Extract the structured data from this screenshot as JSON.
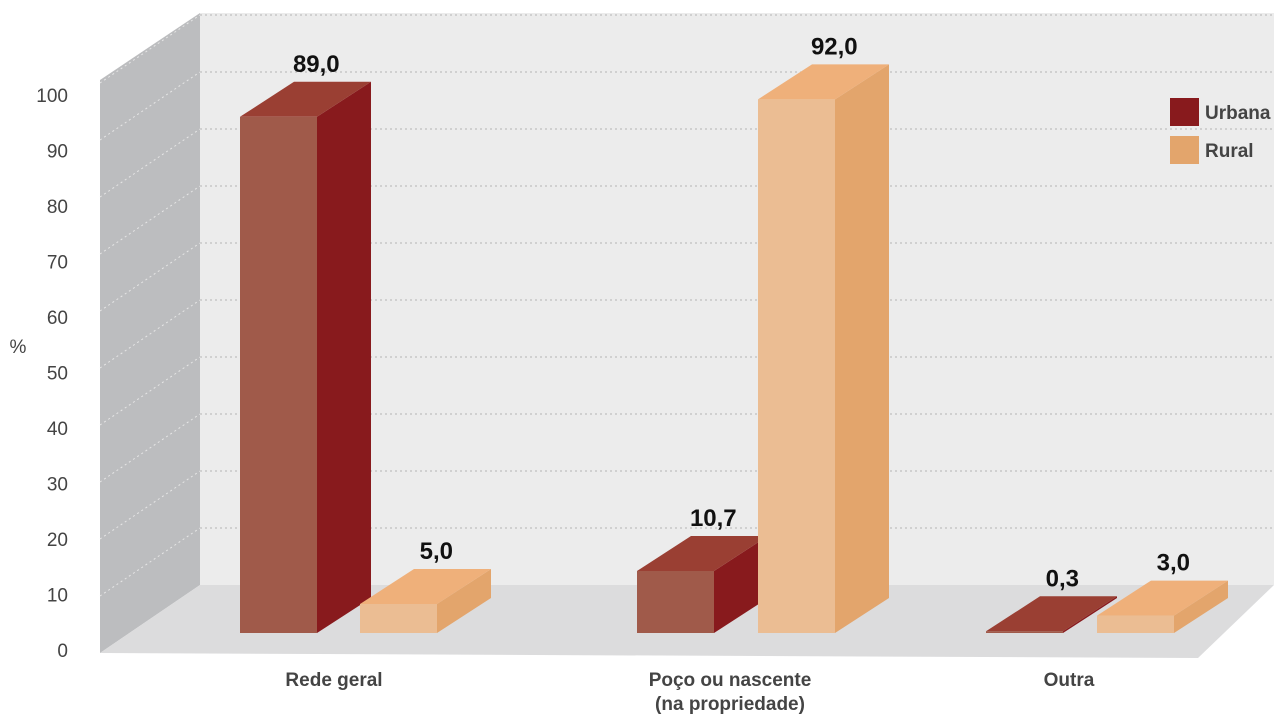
{
  "chart_data": {
    "type": "bar",
    "ylabel": "%",
    "ylim": [
      0,
      100
    ],
    "yticks": [
      "0",
      "10",
      "20",
      "30",
      "40",
      "50",
      "60",
      "70",
      "80",
      "90",
      "100"
    ],
    "categories": [
      "Rede geral",
      "Poço ou nascente (na propriedade)",
      "Outra"
    ],
    "category_lines": [
      [
        "Rede geral"
      ],
      [
        "Poço ou nascente",
        "(na propriedade)"
      ],
      [
        "Outra"
      ]
    ],
    "series": [
      {
        "name": "Urbana",
        "values": [
          89.0,
          10.7,
          0.3
        ],
        "labels": [
          "89,0",
          "10,7",
          "0,3"
        ],
        "color": "#881a1d"
      },
      {
        "name": "Rural",
        "values": [
          5.0,
          92.0,
          3.0
        ],
        "labels": [
          "5,0",
          "92,0",
          "3,0"
        ],
        "color": "#e3a56c"
      }
    ],
    "grid": true,
    "legend": "top-right"
  }
}
